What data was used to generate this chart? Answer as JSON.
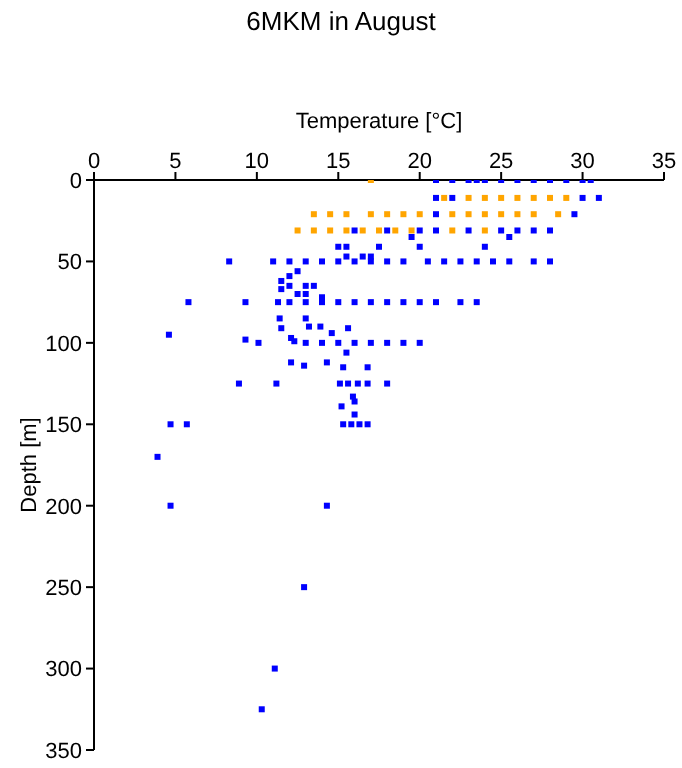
{
  "chart_data": {
    "type": "scatter",
    "title": "6MKM in August",
    "xlabel": "Temperature [°C]",
    "ylabel": "Depth [m]",
    "xlim": [
      0,
      35
    ],
    "xticks": [
      0,
      5,
      10,
      15,
      20,
      25,
      30,
      35
    ],
    "ylim": [
      350,
      0
    ],
    "yticks": [
      0,
      50,
      100,
      150,
      200,
      250,
      300,
      350
    ],
    "grid": false,
    "legend": false,
    "marker": "square",
    "series": [
      {
        "color": "#0000ff",
        "x": [
          21,
          22,
          23,
          23.5,
          24,
          25,
          26,
          27,
          28,
          29,
          30,
          30.5,
          21,
          22,
          30,
          31,
          21,
          29.5,
          16,
          18,
          20,
          21,
          23,
          25,
          26,
          27,
          28,
          19.5,
          25.5,
          15,
          15.5,
          17.5,
          20,
          24,
          15.5,
          16.5,
          17,
          8.3,
          11,
          12,
          13,
          14,
          15,
          16,
          17,
          18,
          19,
          20.5,
          21.5,
          22.5,
          23.5,
          24.5,
          25.5,
          27,
          28,
          12.5,
          12,
          11.5,
          12,
          13,
          13.5,
          11.5,
          12.5,
          13,
          14,
          5.8,
          9.3,
          11.3,
          12,
          13,
          14,
          15,
          16,
          17,
          18,
          19,
          20,
          21,
          22.5,
          23.5,
          11.4,
          13,
          11.5,
          13.2,
          13.9,
          14.6,
          15.6,
          4.6,
          9.3,
          12.1,
          12.3,
          10.1,
          13,
          14,
          15,
          16,
          17,
          18,
          19,
          20,
          15.5,
          12.1,
          12.9,
          14.3,
          15.3,
          16.8,
          8.9,
          11.2,
          15.1,
          15.6,
          16.2,
          16.8,
          18,
          15.9,
          16,
          15.2,
          16,
          15.3,
          15.8,
          16.3,
          16.8,
          4.7,
          5.7,
          3.9,
          4.7,
          14.3,
          12.9,
          11.1,
          10.3
        ],
        "values": [
          0,
          0,
          0,
          0,
          0,
          0,
          0,
          0,
          0,
          0,
          0,
          0,
          11,
          11,
          11,
          11,
          21,
          21,
          31,
          31,
          31,
          31,
          31,
          31,
          31,
          31,
          31,
          35,
          35,
          41,
          41,
          41,
          41,
          41,
          47,
          47,
          47,
          50,
          50,
          50,
          50,
          50,
          50,
          50,
          50,
          50,
          50,
          50,
          50,
          50,
          50,
          50,
          50,
          50,
          50,
          56,
          59,
          62,
          65,
          65,
          65,
          67,
          70,
          70,
          72,
          75,
          75,
          75,
          75,
          75,
          75,
          75,
          75,
          75,
          75,
          75,
          75,
          75,
          75,
          75,
          85,
          85,
          91,
          90,
          90,
          94,
          91,
          95,
          98,
          97,
          99,
          100,
          100,
          100,
          100,
          100,
          100,
          100,
          100,
          100,
          106,
          112,
          114,
          112,
          115,
          115,
          125,
          125,
          125,
          125,
          125,
          125,
          125,
          133,
          136,
          139,
          144,
          150,
          150,
          150,
          150,
          150,
          150,
          170,
          200,
          200,
          250,
          300,
          325
        ]
      },
      {
        "color": "#ffa500",
        "x": [
          17,
          21.5,
          23,
          24,
          25,
          26,
          27,
          28,
          29,
          13.5,
          14.5,
          15.5,
          17,
          18,
          19,
          20,
          22,
          23,
          24,
          25,
          26,
          27,
          28.5,
          12.5,
          13.5,
          14.5,
          15.5,
          16.5,
          17.5,
          18.5,
          19.5,
          22,
          24
        ],
        "values": [
          0,
          11,
          11,
          11,
          11,
          11,
          11,
          11,
          11,
          21,
          21,
          21,
          21,
          21,
          21,
          21,
          21,
          21,
          21,
          21,
          21,
          21,
          21,
          31,
          31,
          31,
          31,
          31,
          31,
          31,
          31,
          31,
          31
        ]
      }
    ]
  }
}
